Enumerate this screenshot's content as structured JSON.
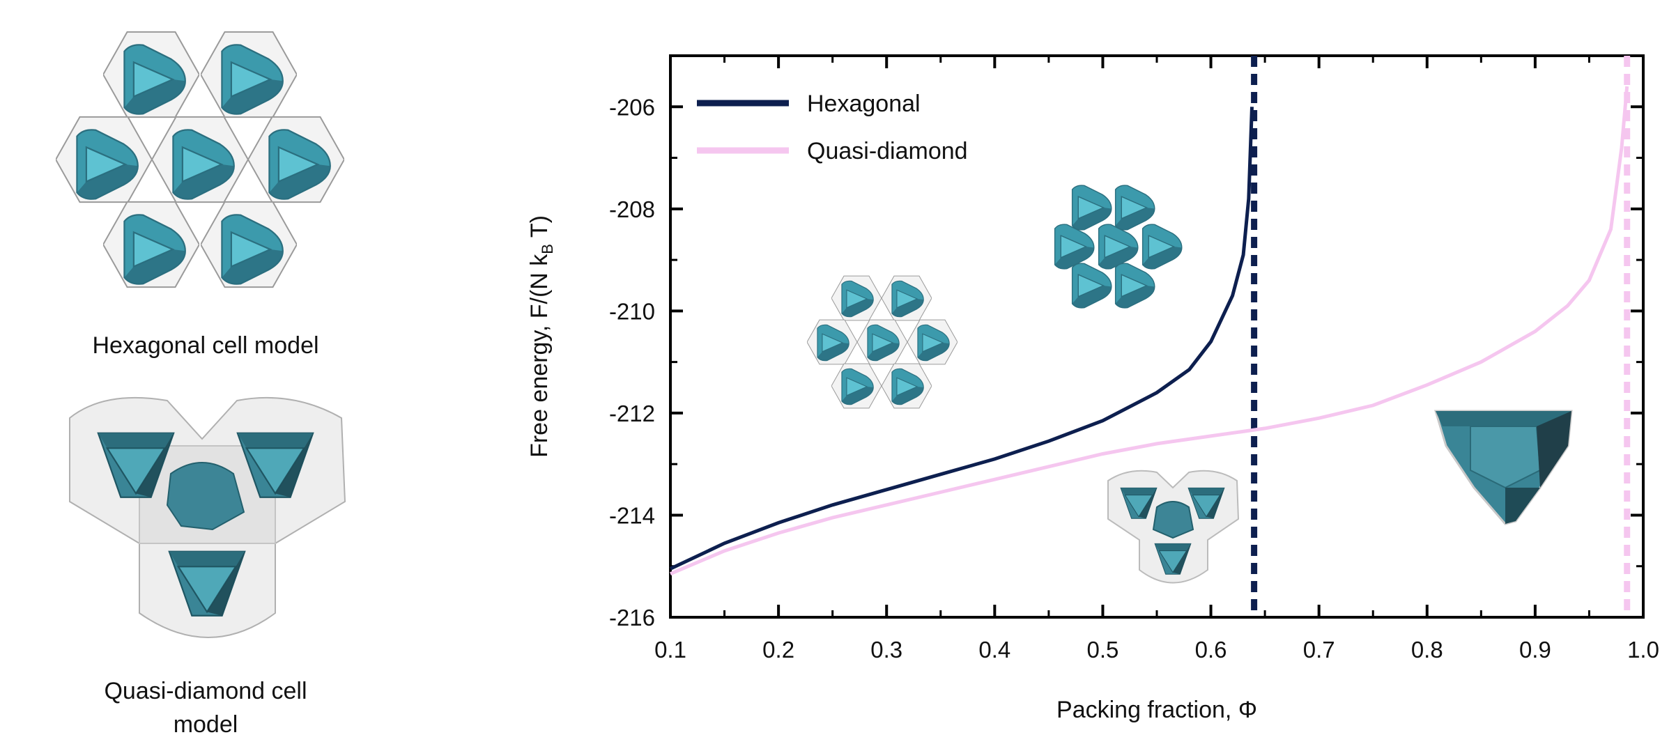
{
  "captions": {
    "hexagonal": "Hexagonal cell model",
    "quasi_diamond_line1": "Quasi-diamond cell",
    "quasi_diamond_line2": "model"
  },
  "colors": {
    "hexagonal": "#0d1f4f",
    "quasi_diamond": "#f5c6ef",
    "particle_light": "#4aa3b4",
    "particle_dark": "#2a6f80",
    "cell_outline": "#9a9a9a"
  },
  "chart_data": {
    "type": "line",
    "xlabel": "Packing fraction, Φ",
    "ylabel": "Free energy, F/(N k",
    "ylabel_sub": "B",
    "ylabel_tail": " T)",
    "xlim": [
      0.1,
      1.0
    ],
    "ylim": [
      -216,
      -205
    ],
    "x_ticks": [
      0.1,
      0.2,
      0.3,
      0.4,
      0.5,
      0.6,
      0.7,
      0.8,
      0.9,
      1.0
    ],
    "x_tick_labels": [
      "0.1",
      "0.2",
      "0.3",
      "0.4",
      "0.5",
      "0.6",
      "0.7",
      "0.8",
      "0.9",
      "1.0"
    ],
    "y_ticks": [
      -206,
      -208,
      -210,
      -212,
      -214,
      -216
    ],
    "y_tick_labels": [
      "-206",
      "-208",
      "-210",
      "-212",
      "-214",
      "-216"
    ],
    "legend_position": "top-left",
    "series": [
      {
        "name": "Hexagonal",
        "style": "solid-thick",
        "points": [
          [
            0.1,
            -215.05
          ],
          [
            0.15,
            -214.55
          ],
          [
            0.2,
            -214.15
          ],
          [
            0.25,
            -213.8
          ],
          [
            0.3,
            -213.5
          ],
          [
            0.35,
            -213.2
          ],
          [
            0.4,
            -212.9
          ],
          [
            0.45,
            -212.55
          ],
          [
            0.5,
            -212.15
          ],
          [
            0.55,
            -211.6
          ],
          [
            0.58,
            -211.15
          ],
          [
            0.6,
            -210.6
          ],
          [
            0.62,
            -209.7
          ],
          [
            0.63,
            -208.9
          ],
          [
            0.635,
            -207.8
          ],
          [
            0.638,
            -206.0
          ]
        ],
        "asymptote": 0.64
      },
      {
        "name": "Quasi-diamond",
        "style": "solid-thin",
        "points": [
          [
            0.1,
            -215.15
          ],
          [
            0.15,
            -214.7
          ],
          [
            0.2,
            -214.35
          ],
          [
            0.25,
            -214.05
          ],
          [
            0.3,
            -213.8
          ],
          [
            0.35,
            -213.55
          ],
          [
            0.4,
            -213.3
          ],
          [
            0.45,
            -213.05
          ],
          [
            0.5,
            -212.8
          ],
          [
            0.55,
            -212.6
          ],
          [
            0.6,
            -212.45
          ],
          [
            0.65,
            -212.3
          ],
          [
            0.7,
            -212.1
          ],
          [
            0.75,
            -211.85
          ],
          [
            0.8,
            -211.45
          ],
          [
            0.85,
            -211.0
          ],
          [
            0.9,
            -210.4
          ],
          [
            0.93,
            -209.9
          ],
          [
            0.95,
            -209.4
          ],
          [
            0.97,
            -208.4
          ],
          [
            0.98,
            -206.8
          ],
          [
            0.985,
            -205.6
          ]
        ],
        "asymptote": 0.985
      }
    ]
  }
}
